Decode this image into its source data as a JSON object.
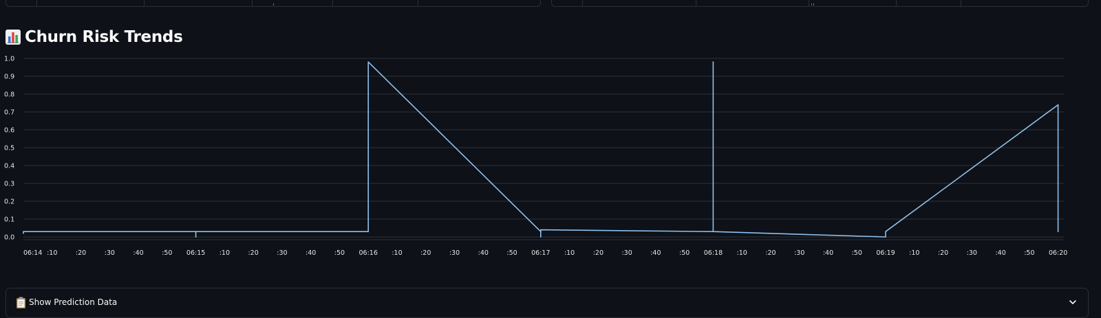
{
  "section": {
    "title": "Churn Risk Trends",
    "title_icon": "bar-chart-emoji-icon"
  },
  "expander": {
    "label": "Show Prediction Data",
    "icon": "clipboard-icon",
    "toggle_icon": "chevron-down-icon"
  },
  "colors": {
    "background": "#0e1117",
    "line": "#8ec1ef",
    "grid": "#2e323a",
    "border": "#2b2f38"
  },
  "chart_data": {
    "type": "line",
    "title": "",
    "xlabel": "",
    "ylabel": "",
    "ylim": [
      0,
      1
    ],
    "y_ticks": [
      "0.0",
      "0.1",
      "0.2",
      "0.3",
      "0.4",
      "0.5",
      "0.6",
      "0.7",
      "0.8",
      "0.9",
      "1.0"
    ],
    "x_ticks": [
      "06:14",
      ":10",
      ":20",
      ":30",
      ":40",
      ":50",
      "06:15",
      ":10",
      ":20",
      ":30",
      ":40",
      ":50",
      "06:16",
      ":10",
      ":20",
      ":30",
      ":40",
      ":50",
      "06:17",
      ":10",
      ":20",
      ":30",
      ":40",
      ":50",
      "06:18",
      ":10",
      ":20",
      ":30",
      ":40",
      ":50",
      "06:19",
      ":10",
      ":20",
      ":30",
      ":40",
      ":50",
      "06:20"
    ],
    "x_range": [
      "06:14:00",
      "06:20:02"
    ],
    "grid": "horizontal",
    "series": [
      {
        "points": [
          {
            "x": "06:14:00",
            "y": 0.02
          },
          {
            "x": "06:14:00",
            "y": 0.03
          },
          {
            "x": "06:15:00",
            "y": 0.03
          },
          {
            "x": "06:15:00",
            "y": 0.0
          },
          {
            "x": "06:15:00",
            "y": 0.03
          },
          {
            "x": "06:16:00",
            "y": 0.03
          },
          {
            "x": "06:16:00",
            "y": 0.98
          },
          {
            "x": "06:17:00",
            "y": 0.03
          },
          {
            "x": "06:17:00",
            "y": 0.0
          },
          {
            "x": "06:17:00",
            "y": 0.04
          },
          {
            "x": "06:18:00",
            "y": 0.03
          },
          {
            "x": "06:18:00",
            "y": 0.98
          },
          {
            "x": "06:18:00",
            "y": 0.03
          },
          {
            "x": "06:19:00",
            "y": 0.0
          },
          {
            "x": "06:19:00",
            "y": 0.03
          },
          {
            "x": "06:20:00",
            "y": 0.74
          },
          {
            "x": "06:20:00",
            "y": 0.03
          }
        ]
      }
    ]
  }
}
